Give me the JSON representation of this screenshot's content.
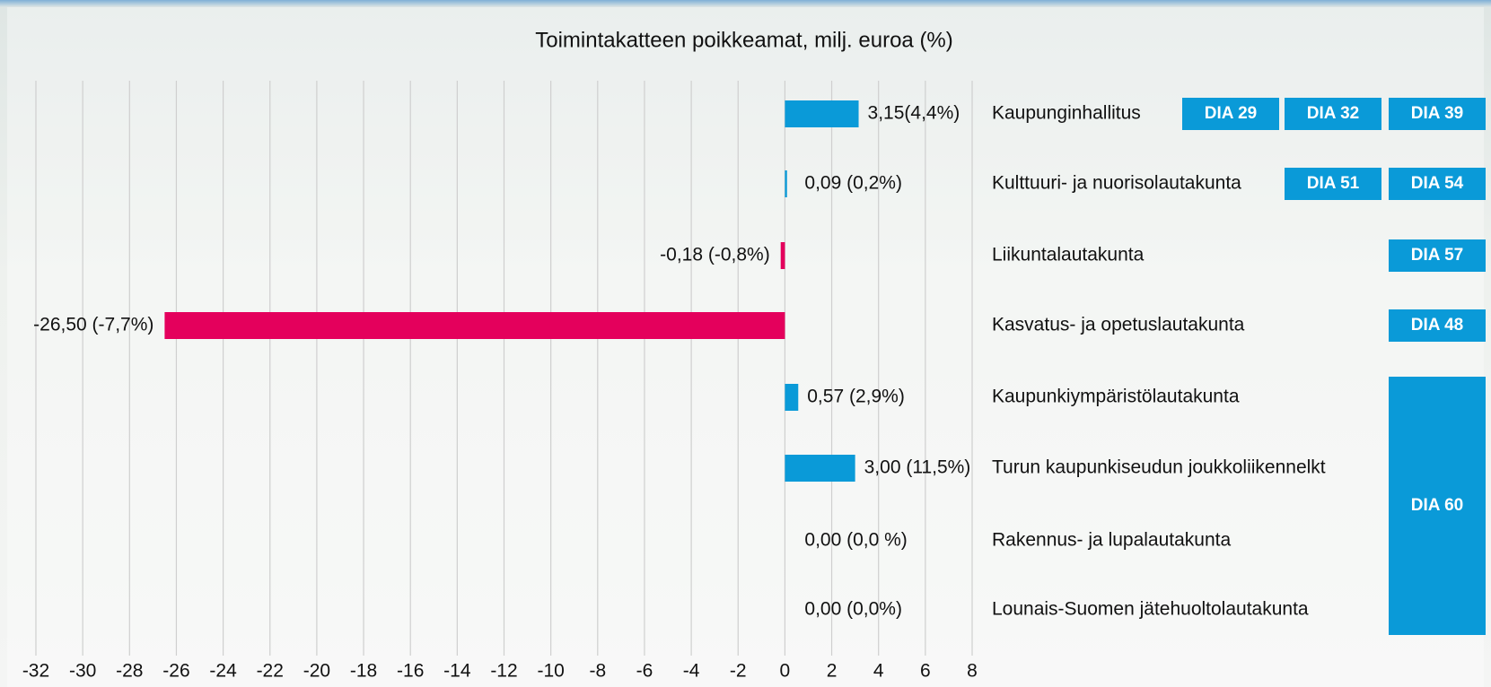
{
  "chart_data": {
    "type": "bar",
    "orientation": "horizontal",
    "title": "Toimintakatteen poikkeamat, milj. euroa (%)",
    "categories": [
      "Kaupunginhallitus",
      "Kulttuuri- ja nuorisolautakunta",
      "Liikuntalautakunta",
      "Kasvatus- ja opetuslautakunta",
      "Kaupunkiympäristölautakunta",
      "Turun kaupunkiseudun joukkoliikennelkt",
      "Rakennus- ja lupalautakunta",
      "Lounais-Suomen jätehuoltolautakunta"
    ],
    "values": [
      3.15,
      0.09,
      -0.18,
      -26.5,
      0.57,
      3.0,
      0.0,
      0.0
    ],
    "value_labels": [
      "3,15(4,4%)",
      "0,09 (0,2%)",
      "-0,18 (-0,8%)",
      "-26,50 (-7,7%)",
      "0,57 (2,9%)",
      "3,00 (11,5%)",
      "0,00 (0,0 %)",
      "0,00 (0,0%)"
    ],
    "colors": {
      "positive": "#0a9ad8",
      "negative": "#e4005c"
    },
    "xlim": [
      -32,
      8
    ],
    "xticks": [
      -32,
      -30,
      -28,
      -26,
      -24,
      -22,
      -20,
      -18,
      -16,
      -14,
      -12,
      -10,
      -8,
      -6,
      -4,
      -2,
      0,
      2,
      4,
      6,
      8
    ],
    "grid": true,
    "slide_links": [
      [
        "DIA 29",
        "DIA 32",
        "DIA 39"
      ],
      [
        "DIA 51",
        "DIA 54"
      ],
      [
        "DIA 57"
      ],
      [
        "DIA 48"
      ],
      [
        "DIA 60"
      ],
      [],
      [],
      []
    ],
    "link_color": "#0a9ad8"
  }
}
